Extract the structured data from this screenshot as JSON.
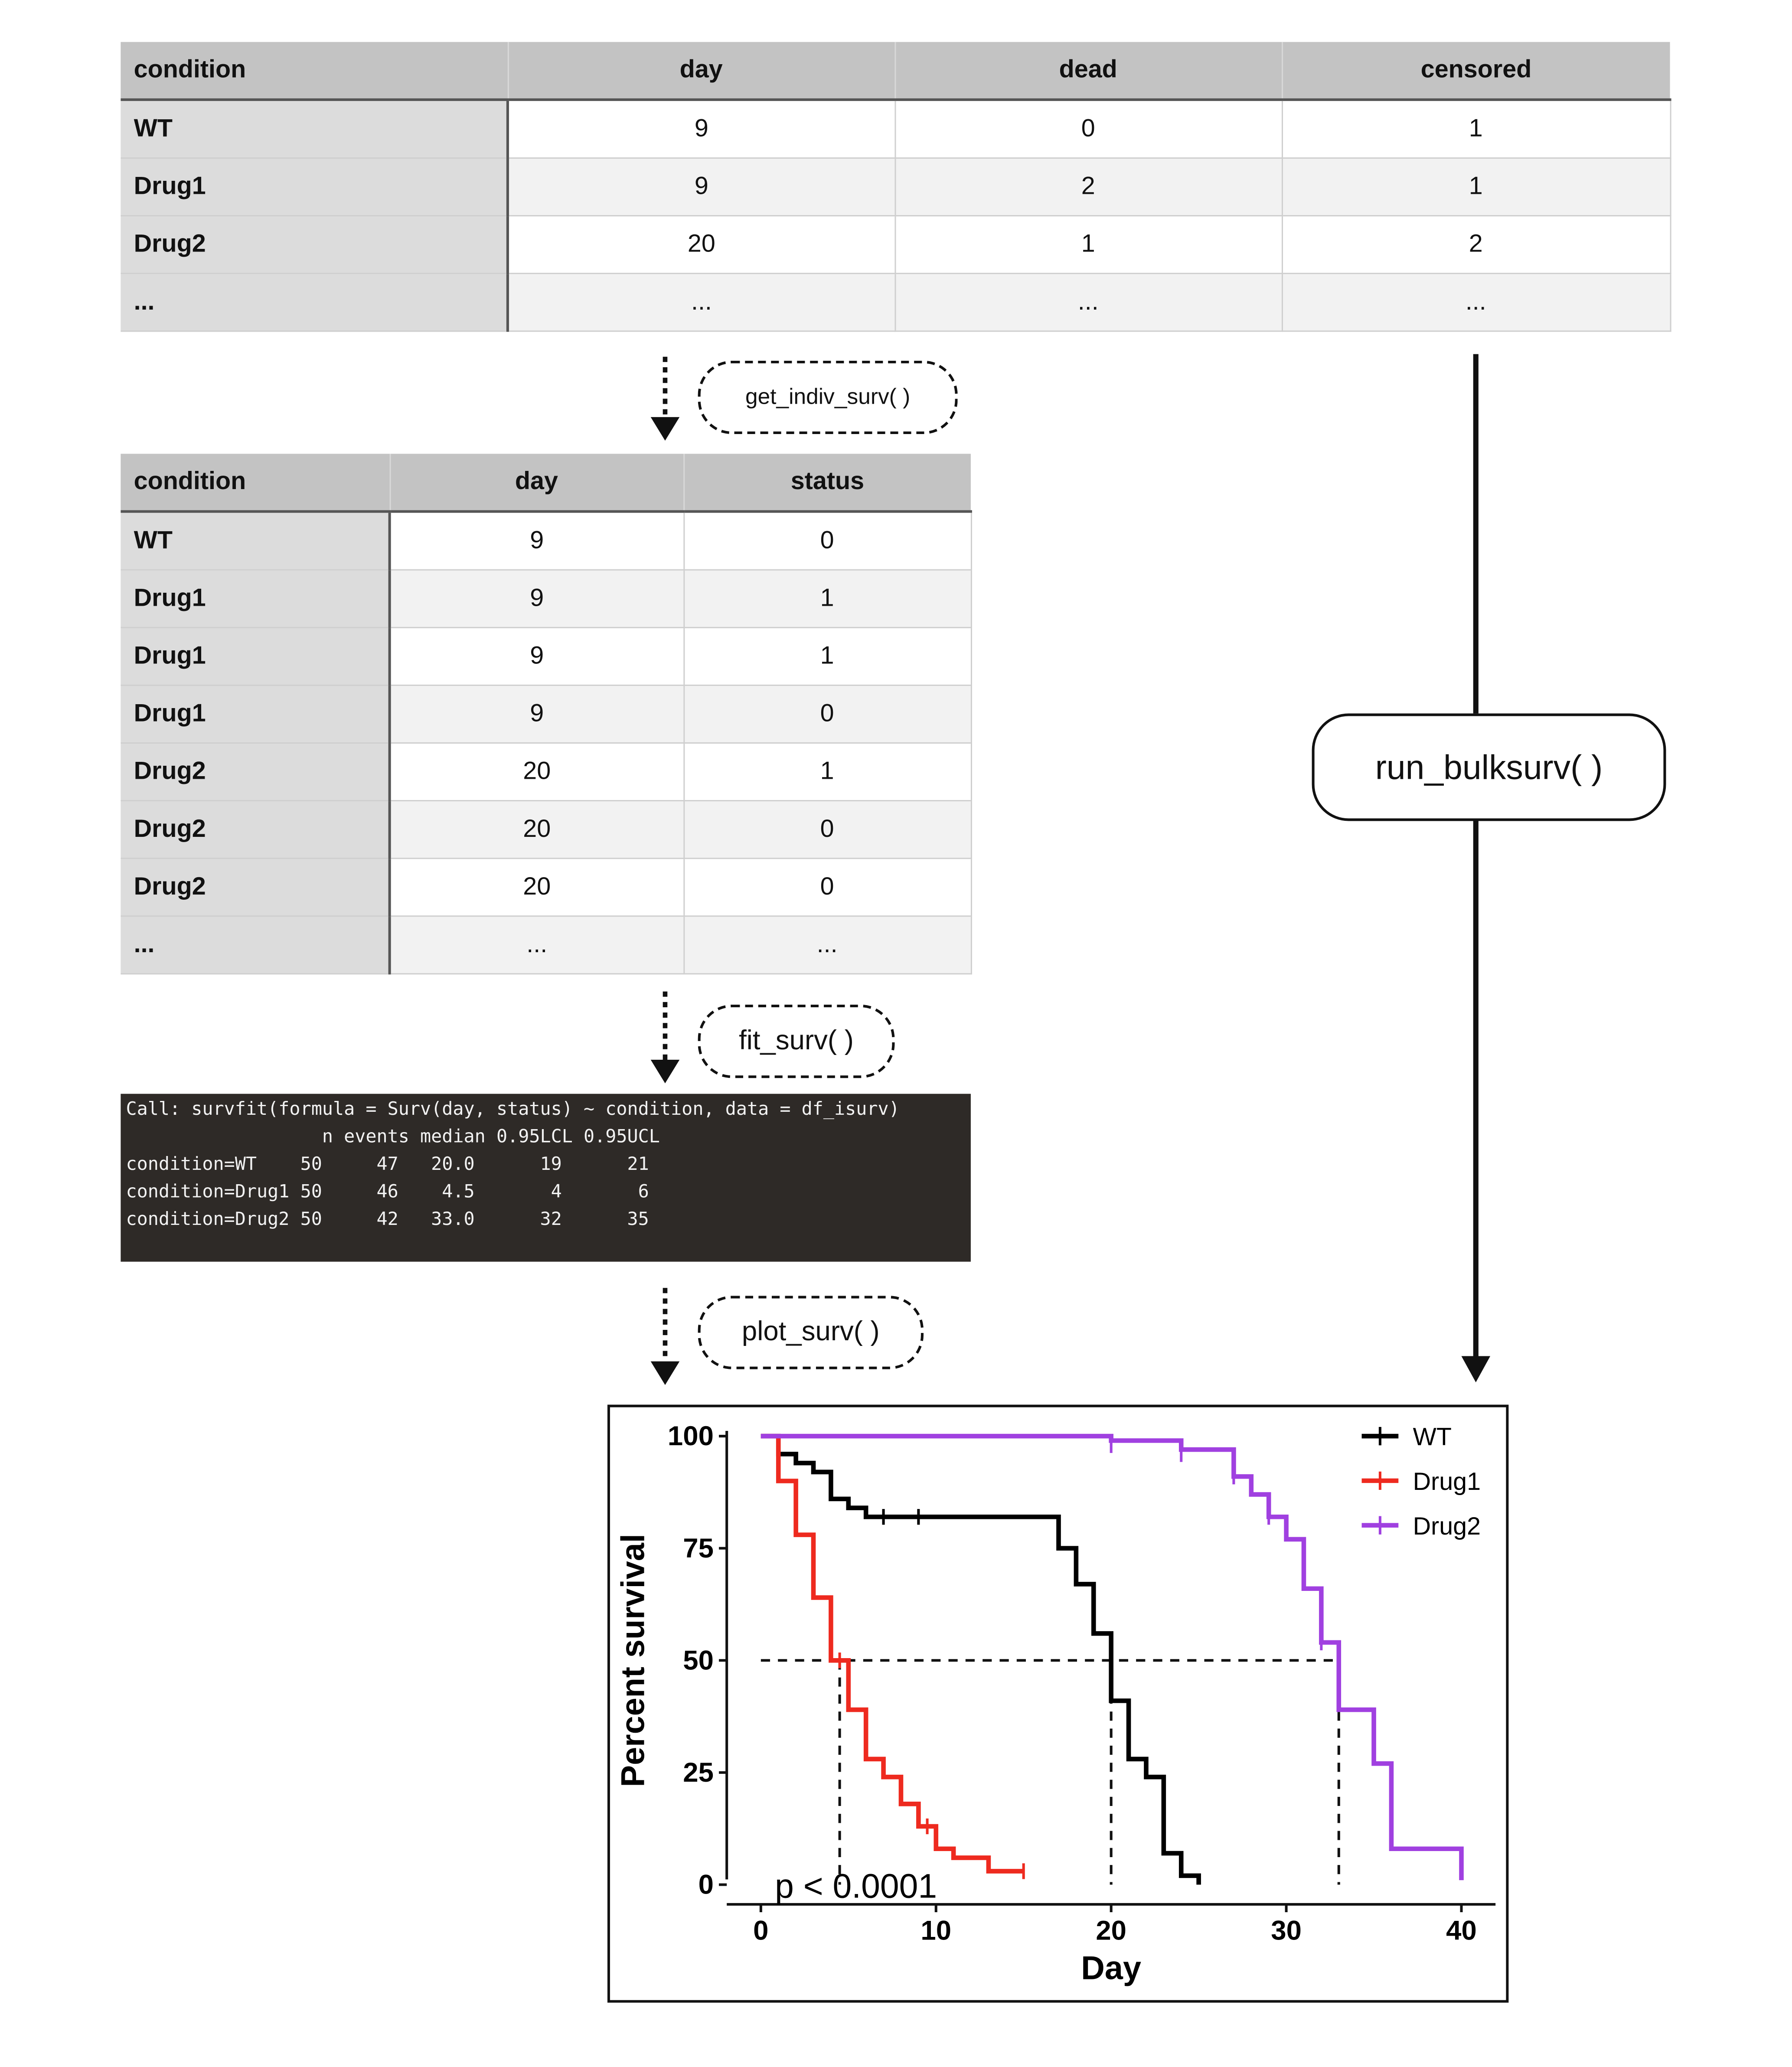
{
  "table1": {
    "headers": [
      "condition",
      "day",
      "dead",
      "censored"
    ],
    "rows": [
      [
        "WT",
        "9",
        "0",
        "1"
      ],
      [
        "Drug1",
        "9",
        "2",
        "1"
      ],
      [
        "Drug2",
        "20",
        "1",
        "2"
      ],
      [
        "...",
        "...",
        "...",
        "..."
      ]
    ]
  },
  "table2": {
    "headers": [
      "condition",
      "day",
      "status"
    ],
    "rows": [
      [
        "WT",
        "9",
        "0"
      ],
      [
        "Drug1",
        "9",
        "1"
      ],
      [
        "Drug1",
        "9",
        "1"
      ],
      [
        "Drug1",
        "9",
        "0"
      ],
      [
        "Drug2",
        "20",
        "1"
      ],
      [
        "Drug2",
        "20",
        "0"
      ],
      [
        "Drug2",
        "20",
        "0"
      ],
      [
        "...",
        "...",
        "..."
      ]
    ]
  },
  "steps": {
    "get_indiv": "get_indiv_surv( )",
    "fit": "fit_surv( )",
    "plot": "plot_surv( )",
    "bulk": "run_bulksurv( )"
  },
  "console": {
    "lines": [
      "Call: survfit(formula = Surv(day, status) ~ condition, data = df_isurv)",
      "",
      "                  n events median 0.95LCL 0.95UCL",
      "condition=WT    50     47   20.0      19      21",
      "condition=Drug1 50     46    4.5       4       6",
      "condition=Drug2 50     42   33.0      32      35"
    ]
  },
  "chart_data": {
    "type": "line",
    "title": "",
    "xlabel": "Day",
    "ylabel": "Percent survival",
    "xlim": [
      0,
      40
    ],
    "ylim": [
      0,
      100
    ],
    "xticks": [
      0,
      10,
      20,
      30,
      40
    ],
    "yticks": [
      0,
      25,
      50,
      75,
      100
    ],
    "legend_position": "top-right",
    "annotation": "p < 0.0001",
    "median_line": {
      "y": 50,
      "x_medians": [
        4.5,
        20,
        33
      ]
    },
    "series": [
      {
        "name": "WT",
        "color": "#000000",
        "steps": [
          [
            0,
            100
          ],
          [
            1,
            96
          ],
          [
            2,
            94
          ],
          [
            3,
            92
          ],
          [
            4,
            86
          ],
          [
            5,
            84
          ],
          [
            6,
            82
          ],
          [
            17,
            75
          ],
          [
            18,
            67
          ],
          [
            19,
            56
          ],
          [
            20,
            41
          ],
          [
            21,
            28
          ],
          [
            22,
            24
          ],
          [
            23,
            7
          ],
          [
            24,
            2
          ],
          [
            25,
            0
          ]
        ],
        "censor": [
          [
            7,
            82
          ],
          [
            9,
            82
          ]
        ]
      },
      {
        "name": "Drug1",
        "color": "#ee2a1f",
        "steps": [
          [
            0,
            100
          ],
          [
            1,
            90
          ],
          [
            2,
            78
          ],
          [
            3,
            64
          ],
          [
            4,
            50
          ],
          [
            5,
            39
          ],
          [
            6,
            28
          ],
          [
            7,
            24
          ],
          [
            8,
            18
          ],
          [
            9,
            13
          ],
          [
            10,
            8
          ],
          [
            11,
            6
          ],
          [
            13,
            3
          ],
          [
            15,
            3
          ]
        ],
        "censor": [
          [
            1,
            97
          ],
          [
            4.5,
            50
          ],
          [
            9.5,
            13
          ],
          [
            15,
            3
          ]
        ]
      },
      {
        "name": "Drug2",
        "color": "#a040e0",
        "steps": [
          [
            0,
            100
          ],
          [
            20,
            99
          ],
          [
            24,
            97
          ],
          [
            27,
            91
          ],
          [
            28,
            87
          ],
          [
            29,
            82
          ],
          [
            30,
            77
          ],
          [
            31,
            66
          ],
          [
            32,
            54
          ],
          [
            33,
            39
          ],
          [
            35,
            27
          ],
          [
            36,
            8
          ],
          [
            40,
            8
          ],
          [
            40,
            1
          ]
        ],
        "censor": [
          [
            20,
            98
          ],
          [
            24,
            96
          ],
          [
            27,
            91
          ],
          [
            29,
            82
          ],
          [
            32,
            54
          ]
        ]
      }
    ]
  }
}
